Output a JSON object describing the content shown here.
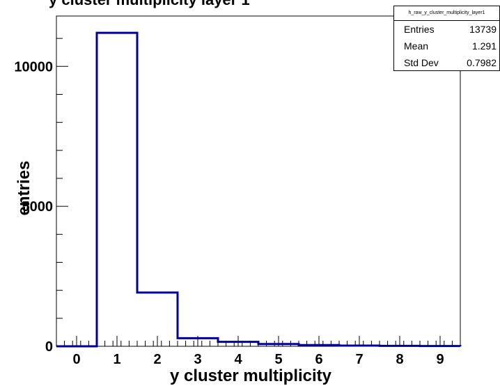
{
  "chart_data": {
    "type": "bar",
    "title": "y cluster multiplicity layer 1",
    "xlabel": "y cluster multiplicity",
    "ylabel": "entries",
    "xlim": [
      -0.5,
      9.5
    ],
    "ylim": [
      0,
      11800
    ],
    "x_ticks": [
      0,
      1,
      2,
      3,
      4,
      5,
      6,
      7,
      8,
      9
    ],
    "y_ticks": [
      0,
      5000,
      10000
    ],
    "y_tick_labels": [
      "0",
      "5000",
      "10000"
    ],
    "categories": [
      0,
      1,
      2,
      3,
      4,
      5,
      6,
      7,
      8,
      9
    ],
    "values": [
      0,
      11200,
      1920,
      290,
      160,
      80,
      45,
      25,
      15,
      8
    ],
    "line_color": "#000099",
    "grid": false
  },
  "stats": {
    "name": "h_raw_y_cluster_multiplicity_layer1",
    "rows": [
      {
        "label": "Entries",
        "value": "13739"
      },
      {
        "label": "Mean",
        "value": "1.291"
      },
      {
        "label": "Std Dev",
        "value": "0.7982"
      }
    ]
  }
}
